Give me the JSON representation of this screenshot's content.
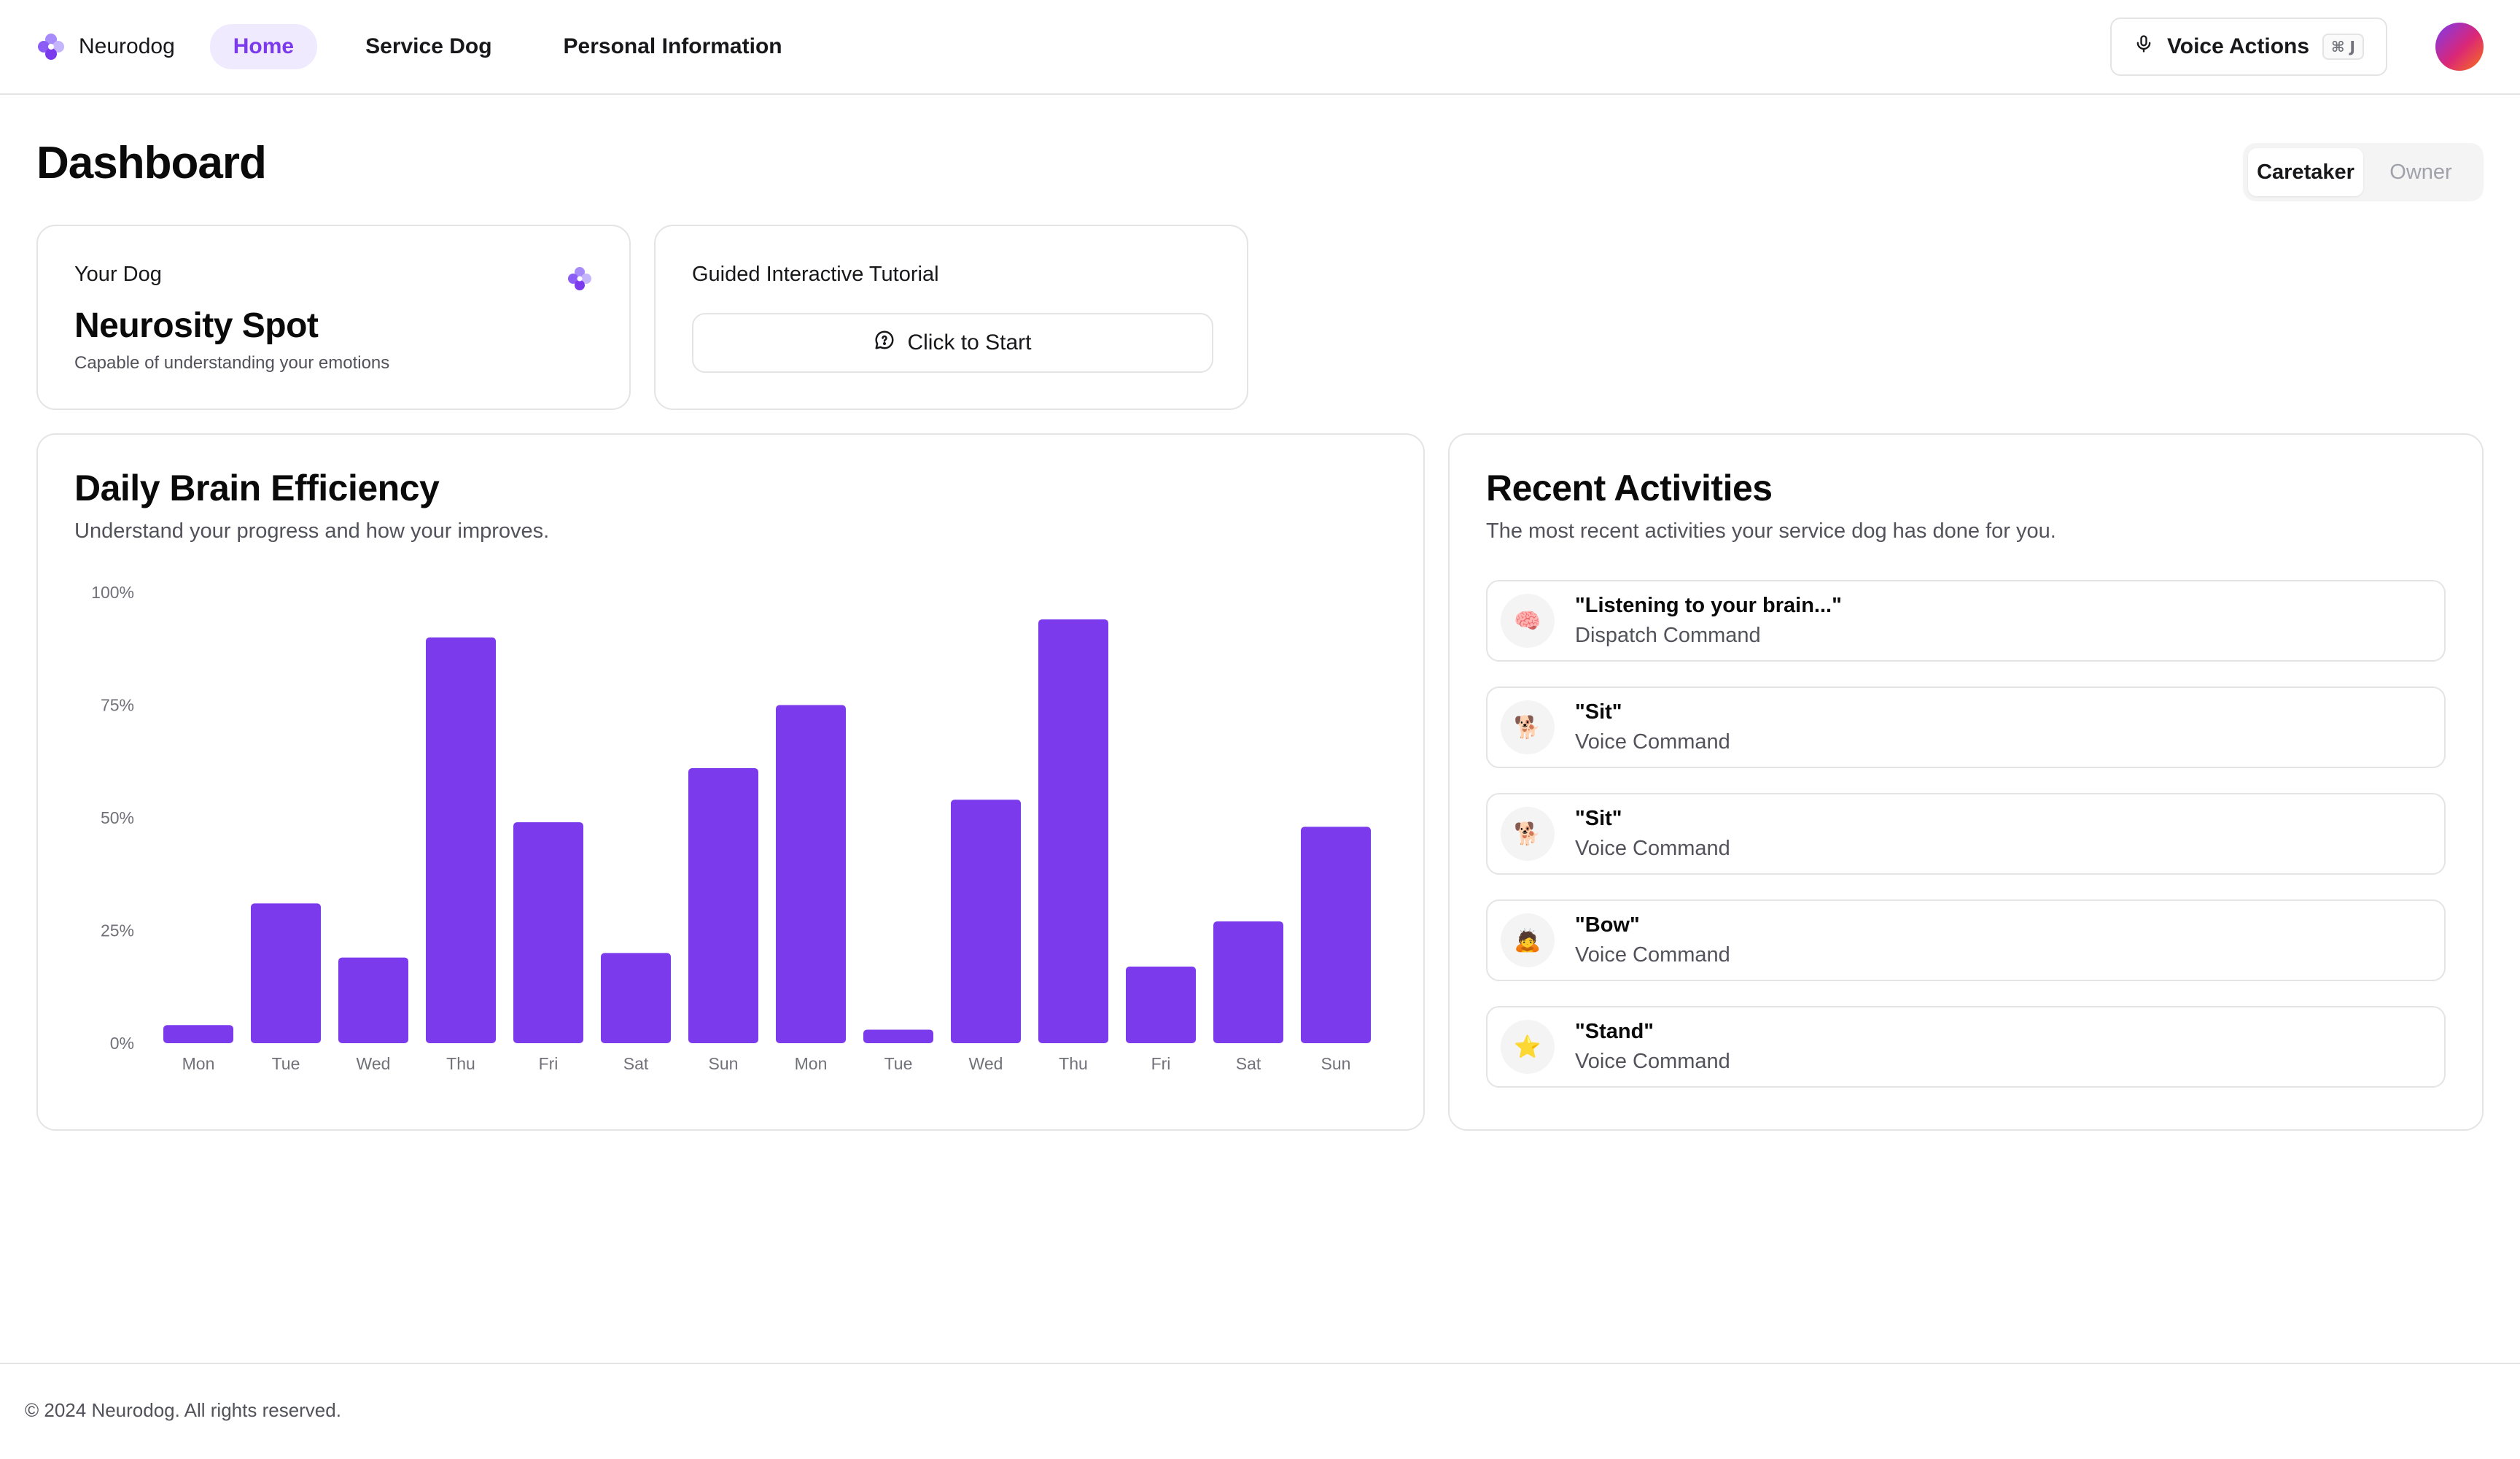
{
  "header": {
    "brand_name": "Neurodog",
    "nav": [
      {
        "label": "Home",
        "active": true
      },
      {
        "label": "Service Dog",
        "active": false
      },
      {
        "label": "Personal Information",
        "active": false
      }
    ],
    "voice_actions_label": "Voice Actions",
    "voice_actions_shortcut": "⌘ J",
    "avatar_icon": "avatar-gradient"
  },
  "page": {
    "title": "Dashboard",
    "roles": [
      {
        "label": "Caretaker",
        "active": true
      },
      {
        "label": "Owner",
        "active": false
      }
    ]
  },
  "dog_card": {
    "label": "Your Dog",
    "name": "Neurosity Spot",
    "description": "Capable of understanding your emotions",
    "icon": "neurodog-logo-icon"
  },
  "tutorial_card": {
    "label": "Guided Interactive Tutorial",
    "button_label": "Click to Start",
    "button_icon": "chat-bubble-icon"
  },
  "efficiency_card": {
    "title": "Daily Brain Efficiency",
    "subtitle": "Understand your progress and how your improves."
  },
  "chart_data": {
    "type": "bar",
    "title": "Daily Brain Efficiency",
    "xlabel": "",
    "ylabel": "",
    "categories": [
      "Mon",
      "Tue",
      "Wed",
      "Thu",
      "Fri",
      "Sat",
      "Sun",
      "Mon",
      "Tue",
      "Wed",
      "Thu",
      "Fri",
      "Sat",
      "Sun"
    ],
    "values": [
      4,
      31,
      19,
      90,
      49,
      20,
      61,
      75,
      3,
      54,
      94,
      17,
      27,
      48
    ],
    "ylim": [
      0,
      100
    ],
    "y_ticks": [
      "0%",
      "25%",
      "50%",
      "75%",
      "100%"
    ],
    "grid": false,
    "bar_color": "#7c3aed"
  },
  "activities_card": {
    "title": "Recent Activities",
    "subtitle": "The most recent activities your service dog has done for you.",
    "items": [
      {
        "title": "\"Listening to your brain...\"",
        "type": "Dispatch Command",
        "icon": "brain-icon",
        "glyph": "🧠"
      },
      {
        "title": "\"Sit\"",
        "type": "Voice Command",
        "icon": "sitting-dog-icon",
        "glyph": "🐕"
      },
      {
        "title": "\"Sit\"",
        "type": "Voice Command",
        "icon": "sitting-dog-icon",
        "glyph": "🐕"
      },
      {
        "title": "\"Bow\"",
        "type": "Voice Command",
        "icon": "bowing-person-icon",
        "glyph": "🙇"
      },
      {
        "title": "\"Stand\"",
        "type": "Voice Command",
        "icon": "star-icon",
        "glyph": "⭐"
      }
    ]
  },
  "footer": {
    "text": "© 2024 Neurodog. All rights reserved."
  }
}
